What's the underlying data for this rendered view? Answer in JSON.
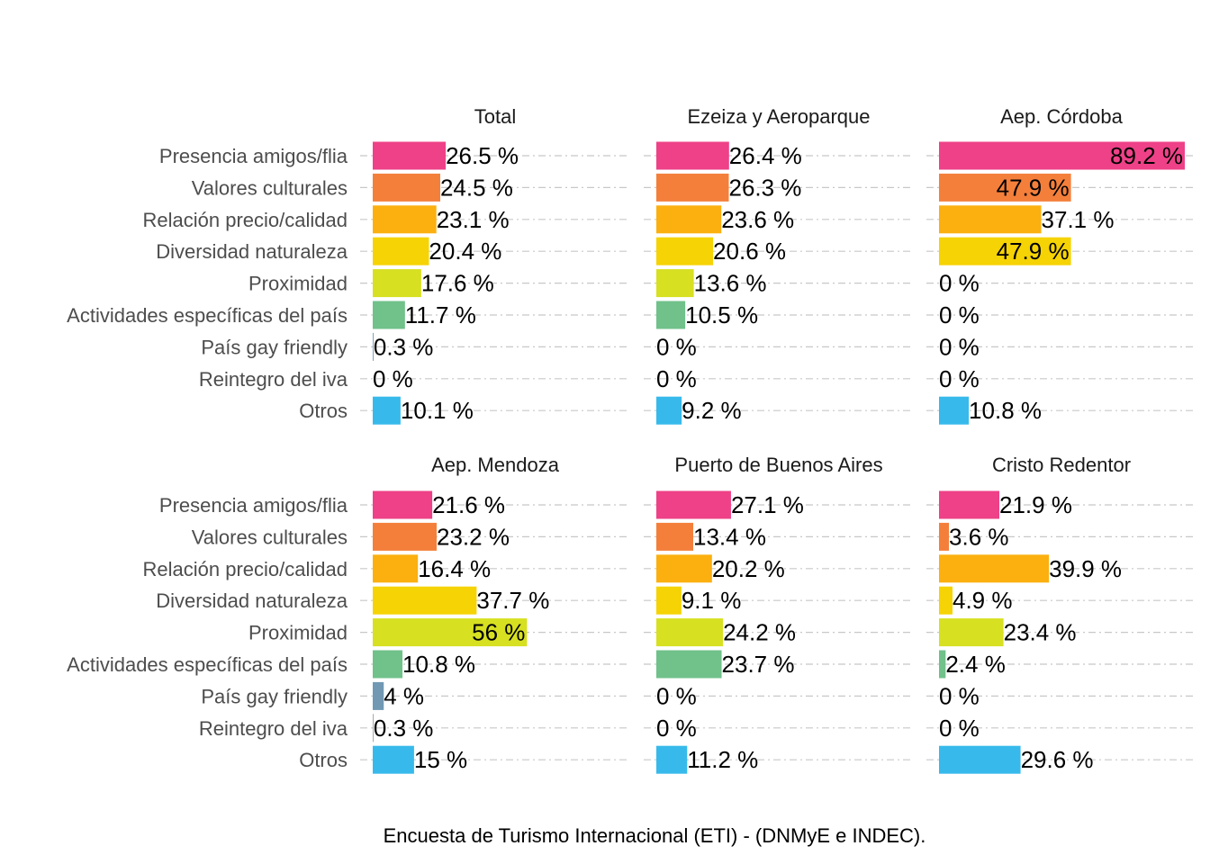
{
  "caption": "Encuesta de Turismo Internacional (ETI) - (DNMyE e INDEC).",
  "chart_data": {
    "type": "bar",
    "orientation": "horizontal",
    "grid": "dashed horizontal",
    "value_max": 89.2,
    "categories": [
      "Presencia amigos/flia",
      "Valores culturales",
      "Relación precio/calidad",
      "Diversidad naturaleza",
      "Proximidad",
      "Actividades específicas del país",
      "País gay friendly",
      "Reintegro del iva",
      "Otros"
    ],
    "colors": [
      "#ee4187",
      "#f47f3b",
      "#fbb010",
      "#f5d304",
      "#d7e021",
      "#70c18a",
      "#7199b4",
      "#a0a0a0",
      "#37baeb"
    ],
    "panels": [
      {
        "title": "Total",
        "values": [
          26.5,
          24.5,
          23.1,
          20.4,
          17.6,
          11.7,
          0.3,
          0,
          10.1
        ],
        "labels": [
          "26.5 %",
          "24.5 %",
          "23.1 %",
          "20.4 %",
          "17.6 %",
          "11.7 %",
          "0.3 %",
          "0 %",
          "10.1 %"
        ]
      },
      {
        "title": "Ezeiza y Aeroparque",
        "values": [
          26.4,
          26.3,
          23.6,
          20.6,
          13.6,
          10.5,
          0,
          0,
          9.2
        ],
        "labels": [
          "26.4 %",
          "26.3 %",
          "23.6 %",
          "20.6 %",
          "13.6 %",
          "10.5 %",
          "0 %",
          "0 %",
          "9.2 %"
        ]
      },
      {
        "title": "Aep. Córdoba",
        "values": [
          89.2,
          47.9,
          37.1,
          47.9,
          0,
          0,
          0,
          0,
          10.8
        ],
        "labels": [
          "89.2 %",
          "47.9 %",
          "37.1 %",
          "47.9 %",
          "0 %",
          "0 %",
          "0 %",
          "0 %",
          "10.8 %"
        ]
      },
      {
        "title": "Aep. Mendoza",
        "values": [
          21.6,
          23.2,
          16.4,
          37.7,
          56,
          10.8,
          4,
          0.3,
          15
        ],
        "labels": [
          "21.6 %",
          "23.2 %",
          "16.4 %",
          "37.7 %",
          "56 %",
          "10.8 %",
          "4 %",
          "0.3 %",
          "15 %"
        ]
      },
      {
        "title": "Puerto de Buenos Aires",
        "values": [
          27.1,
          13.4,
          20.2,
          9.1,
          24.2,
          23.7,
          0,
          0,
          11.2
        ],
        "labels": [
          "27.1 %",
          "13.4 %",
          "20.2 %",
          "9.1 %",
          "24.2 %",
          "23.7 %",
          "0 %",
          "0 %",
          "11.2 %"
        ]
      },
      {
        "title": "Cristo Redentor",
        "values": [
          21.9,
          3.6,
          39.9,
          4.9,
          23.4,
          2.4,
          0,
          0,
          29.6
        ],
        "labels": [
          "21.9 %",
          "3.6 %",
          "39.9 %",
          "4.9 %",
          "23.4 %",
          "2.4 %",
          "0 %",
          "0 %",
          "29.6 %"
        ]
      }
    ]
  }
}
